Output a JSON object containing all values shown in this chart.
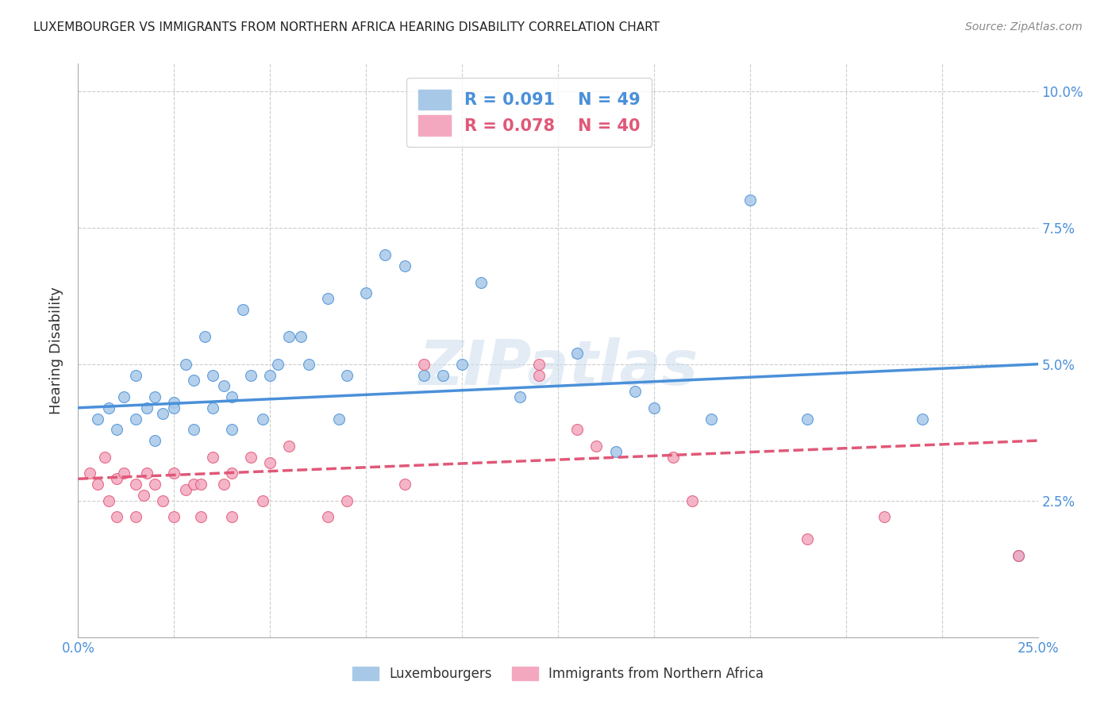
{
  "title": "LUXEMBOURGER VS IMMIGRANTS FROM NORTHERN AFRICA HEARING DISABILITY CORRELATION CHART",
  "source_text": "Source: ZipAtlas.com",
  "ylabel": "Hearing Disability",
  "xlabel": "",
  "xlim": [
    0.0,
    0.25
  ],
  "ylim": [
    0.0,
    0.105
  ],
  "xtick_positions": [
    0.0,
    0.025,
    0.05,
    0.075,
    0.1,
    0.125,
    0.15,
    0.175,
    0.2,
    0.225,
    0.25
  ],
  "xticklabels": [
    "0.0%",
    "",
    "",
    "",
    "",
    "",
    "",
    "",
    "",
    "",
    "25.0%"
  ],
  "ytick_positions": [
    0.025,
    0.05,
    0.075,
    0.1
  ],
  "yticklabels": [
    "2.5%",
    "5.0%",
    "7.5%",
    "10.0%"
  ],
  "blue_R": 0.091,
  "blue_N": 49,
  "pink_R": 0.078,
  "pink_N": 40,
  "blue_color": "#a8c8e8",
  "pink_color": "#f4a8c0",
  "blue_line_color": "#4a90d9",
  "pink_line_color": "#e05878",
  "grid_color": "#cccccc",
  "background_color": "#ffffff",
  "blue_line_x0": 0.0,
  "blue_line_y0": 0.042,
  "blue_line_x1": 0.25,
  "blue_line_y1": 0.05,
  "pink_line_x0": 0.0,
  "pink_line_y0": 0.029,
  "pink_line_x1": 0.25,
  "pink_line_y1": 0.036,
  "blue_x": [
    0.005,
    0.008,
    0.01,
    0.012,
    0.015,
    0.015,
    0.018,
    0.02,
    0.022,
    0.025,
    0.028,
    0.03,
    0.033,
    0.035,
    0.038,
    0.04,
    0.04,
    0.043,
    0.045,
    0.048,
    0.05,
    0.052,
    0.055,
    0.058,
    0.06,
    0.065,
    0.068,
    0.07,
    0.075,
    0.08,
    0.085,
    0.09,
    0.095,
    0.1,
    0.105,
    0.115,
    0.13,
    0.14,
    0.145,
    0.15,
    0.165,
    0.175,
    0.19,
    0.22,
    0.245,
    0.02,
    0.025,
    0.03,
    0.035
  ],
  "blue_y": [
    0.04,
    0.042,
    0.038,
    0.044,
    0.048,
    0.04,
    0.042,
    0.044,
    0.041,
    0.043,
    0.05,
    0.047,
    0.055,
    0.048,
    0.046,
    0.044,
    0.038,
    0.06,
    0.048,
    0.04,
    0.048,
    0.05,
    0.055,
    0.055,
    0.05,
    0.062,
    0.04,
    0.048,
    0.063,
    0.07,
    0.068,
    0.048,
    0.048,
    0.05,
    0.065,
    0.044,
    0.052,
    0.034,
    0.045,
    0.042,
    0.04,
    0.08,
    0.04,
    0.04,
    0.015,
    0.036,
    0.042,
    0.038,
    0.042
  ],
  "pink_x": [
    0.003,
    0.005,
    0.007,
    0.008,
    0.01,
    0.01,
    0.012,
    0.015,
    0.015,
    0.017,
    0.018,
    0.02,
    0.022,
    0.025,
    0.025,
    0.028,
    0.03,
    0.032,
    0.032,
    0.035,
    0.038,
    0.04,
    0.04,
    0.045,
    0.048,
    0.05,
    0.055,
    0.065,
    0.07,
    0.085,
    0.09,
    0.12,
    0.13,
    0.135,
    0.155,
    0.16,
    0.19,
    0.21,
    0.245,
    0.12
  ],
  "pink_y": [
    0.03,
    0.028,
    0.033,
    0.025,
    0.029,
    0.022,
    0.03,
    0.028,
    0.022,
    0.026,
    0.03,
    0.028,
    0.025,
    0.03,
    0.022,
    0.027,
    0.028,
    0.028,
    0.022,
    0.033,
    0.028,
    0.03,
    0.022,
    0.033,
    0.025,
    0.032,
    0.035,
    0.022,
    0.025,
    0.028,
    0.05,
    0.048,
    0.038,
    0.035,
    0.033,
    0.025,
    0.018,
    0.022,
    0.015,
    0.05
  ],
  "legend_labels": [
    "Luxembourgers",
    "Immigrants from Northern Africa"
  ]
}
